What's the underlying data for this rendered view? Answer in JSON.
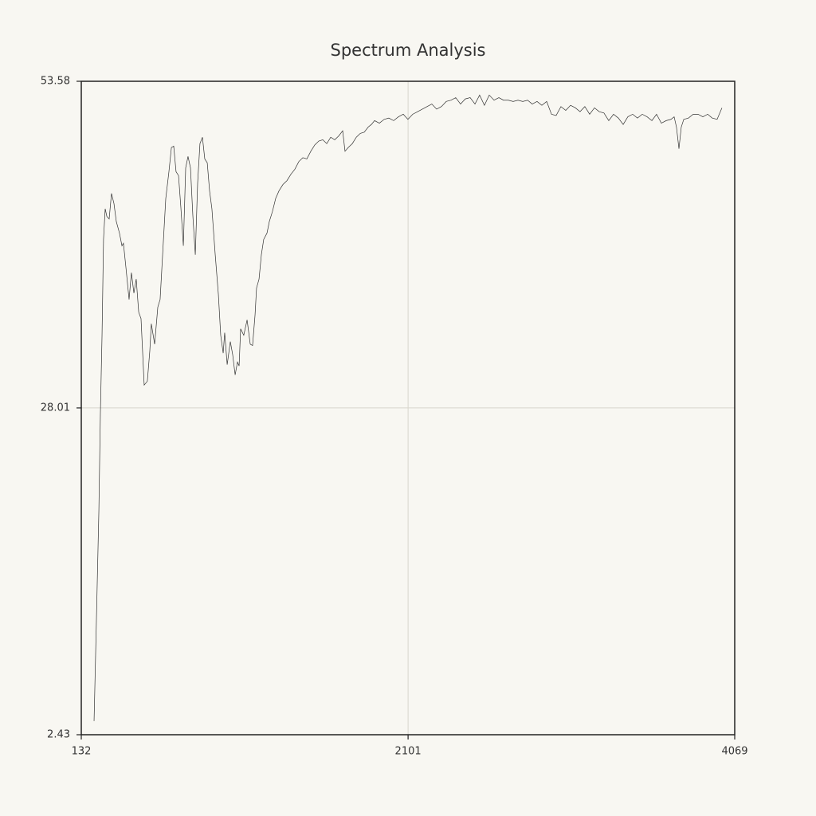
{
  "chart_data": {
    "type": "line",
    "title": "Spectrum Analysis",
    "x": [
      209,
      223,
      238,
      247,
      257,
      266,
      276,
      286,
      300,
      314,
      329,
      343,
      362,
      377,
      386,
      401,
      420,
      434,
      449,
      463,
      478,
      492,
      511,
      530,
      545,
      554,
      574,
      593,
      607,
      622,
      641,
      660,
      675,
      689,
      703,
      718,
      732,
      747,
      761,
      775,
      790,
      804,
      819,
      833,
      847,
      862,
      876,
      891,
      905,
      919,
      939,
      958,
      972,
      987,
      996,
      1011,
      1030,
      1044,
      1059,
      1073,
      1083,
      1092,
      1111,
      1131,
      1150,
      1164,
      1179,
      1188,
      1203,
      1217,
      1231,
      1251,
      1265,
      1284,
      1303,
      1323,
      1347,
      1371,
      1395,
      1419,
      1443,
      1467,
      1491,
      1515,
      1539,
      1563,
      1587,
      1611,
      1635,
      1659,
      1683,
      1707,
      1721,
      1741,
      1765,
      1789,
      1813,
      1837,
      1861,
      1880,
      1899,
      1928,
      1957,
      1985,
      2014,
      2043,
      2072,
      2100,
      2129,
      2158,
      2187,
      2216,
      2244,
      2273,
      2302,
      2331,
      2360,
      2388,
      2417,
      2446,
      2475,
      2504,
      2532,
      2561,
      2590,
      2619,
      2648,
      2676,
      2705,
      2734,
      2763,
      2792,
      2821,
      2849,
      2878,
      2907,
      2936,
      2965,
      2993,
      3022,
      3051,
      3080,
      3109,
      3137,
      3166,
      3195,
      3224,
      3253,
      3281,
      3310,
      3339,
      3368,
      3397,
      3425,
      3454,
      3483,
      3512,
      3541,
      3570,
      3598,
      3627,
      3656,
      3685,
      3704,
      3718,
      3733,
      3747,
      3762,
      3790,
      3819,
      3848,
      3877,
      3906,
      3934,
      3963,
      3992
    ],
    "series": [
      {
        "color": "#333333",
        "values": [
          3.5,
          11.3,
          20.0,
          27.5,
          33.7,
          41.2,
          43.6,
          43.0,
          42.8,
          44.8,
          44.0,
          42.6,
          41.7,
          40.7,
          40.9,
          39.0,
          36.5,
          38.6,
          37.0,
          38.1,
          35.5,
          35.0,
          29.8,
          30.1,
          32.5,
          34.6,
          33.0,
          35.9,
          36.5,
          40.0,
          44.4,
          46.5,
          48.4,
          48.5,
          46.5,
          46.2,
          43.7,
          40.7,
          46.8,
          47.7,
          46.8,
          43.1,
          40.0,
          45.6,
          48.7,
          49.2,
          47.5,
          47.2,
          45.0,
          43.6,
          40.0,
          36.9,
          33.7,
          32.3,
          33.9,
          31.4,
          33.2,
          32.2,
          30.6,
          31.6,
          31.3,
          34.2,
          33.7,
          34.9,
          33.0,
          32.9,
          35.3,
          37.4,
          38.1,
          40.0,
          41.2,
          41.7,
          42.6,
          43.4,
          44.4,
          45.0,
          45.5,
          45.8,
          46.3,
          46.7,
          47.3,
          47.6,
          47.5,
          48.1,
          48.6,
          48.9,
          49.0,
          48.7,
          49.2,
          49.0,
          49.3,
          49.7,
          48.1,
          48.4,
          48.7,
          49.2,
          49.5,
          49.6,
          50.0,
          50.2,
          50.5,
          50.3,
          50.6,
          50.7,
          50.5,
          50.8,
          51.0,
          50.6,
          51.0,
          51.2,
          51.4,
          51.6,
          51.8,
          51.4,
          51.6,
          52.0,
          52.1,
          52.3,
          51.8,
          52.2,
          52.3,
          51.8,
          52.5,
          51.7,
          52.5,
          52.1,
          52.3,
          52.1,
          52.1,
          52.0,
          52.1,
          52.0,
          52.1,
          51.8,
          52.0,
          51.7,
          52.0,
          51.0,
          50.9,
          51.6,
          51.3,
          51.7,
          51.5,
          51.2,
          51.6,
          51.0,
          51.5,
          51.2,
          51.1,
          50.5,
          51.0,
          50.7,
          50.2,
          50.8,
          51.0,
          50.7,
          51.0,
          50.8,
          50.5,
          51.0,
          50.3,
          50.5,
          50.6,
          50.8,
          50.0,
          48.3,
          50.0,
          50.6,
          50.7,
          51.0,
          51.0,
          50.8,
          51.0,
          50.7,
          50.6,
          51.5
        ]
      }
    ],
    "xlim": [
      132,
      4069
    ],
    "xticks": [
      132,
      2101,
      4069
    ],
    "ylim": [
      2.43,
      53.58
    ],
    "yticks": [
      2.43,
      28.01,
      53.58
    ],
    "grid": true
  }
}
